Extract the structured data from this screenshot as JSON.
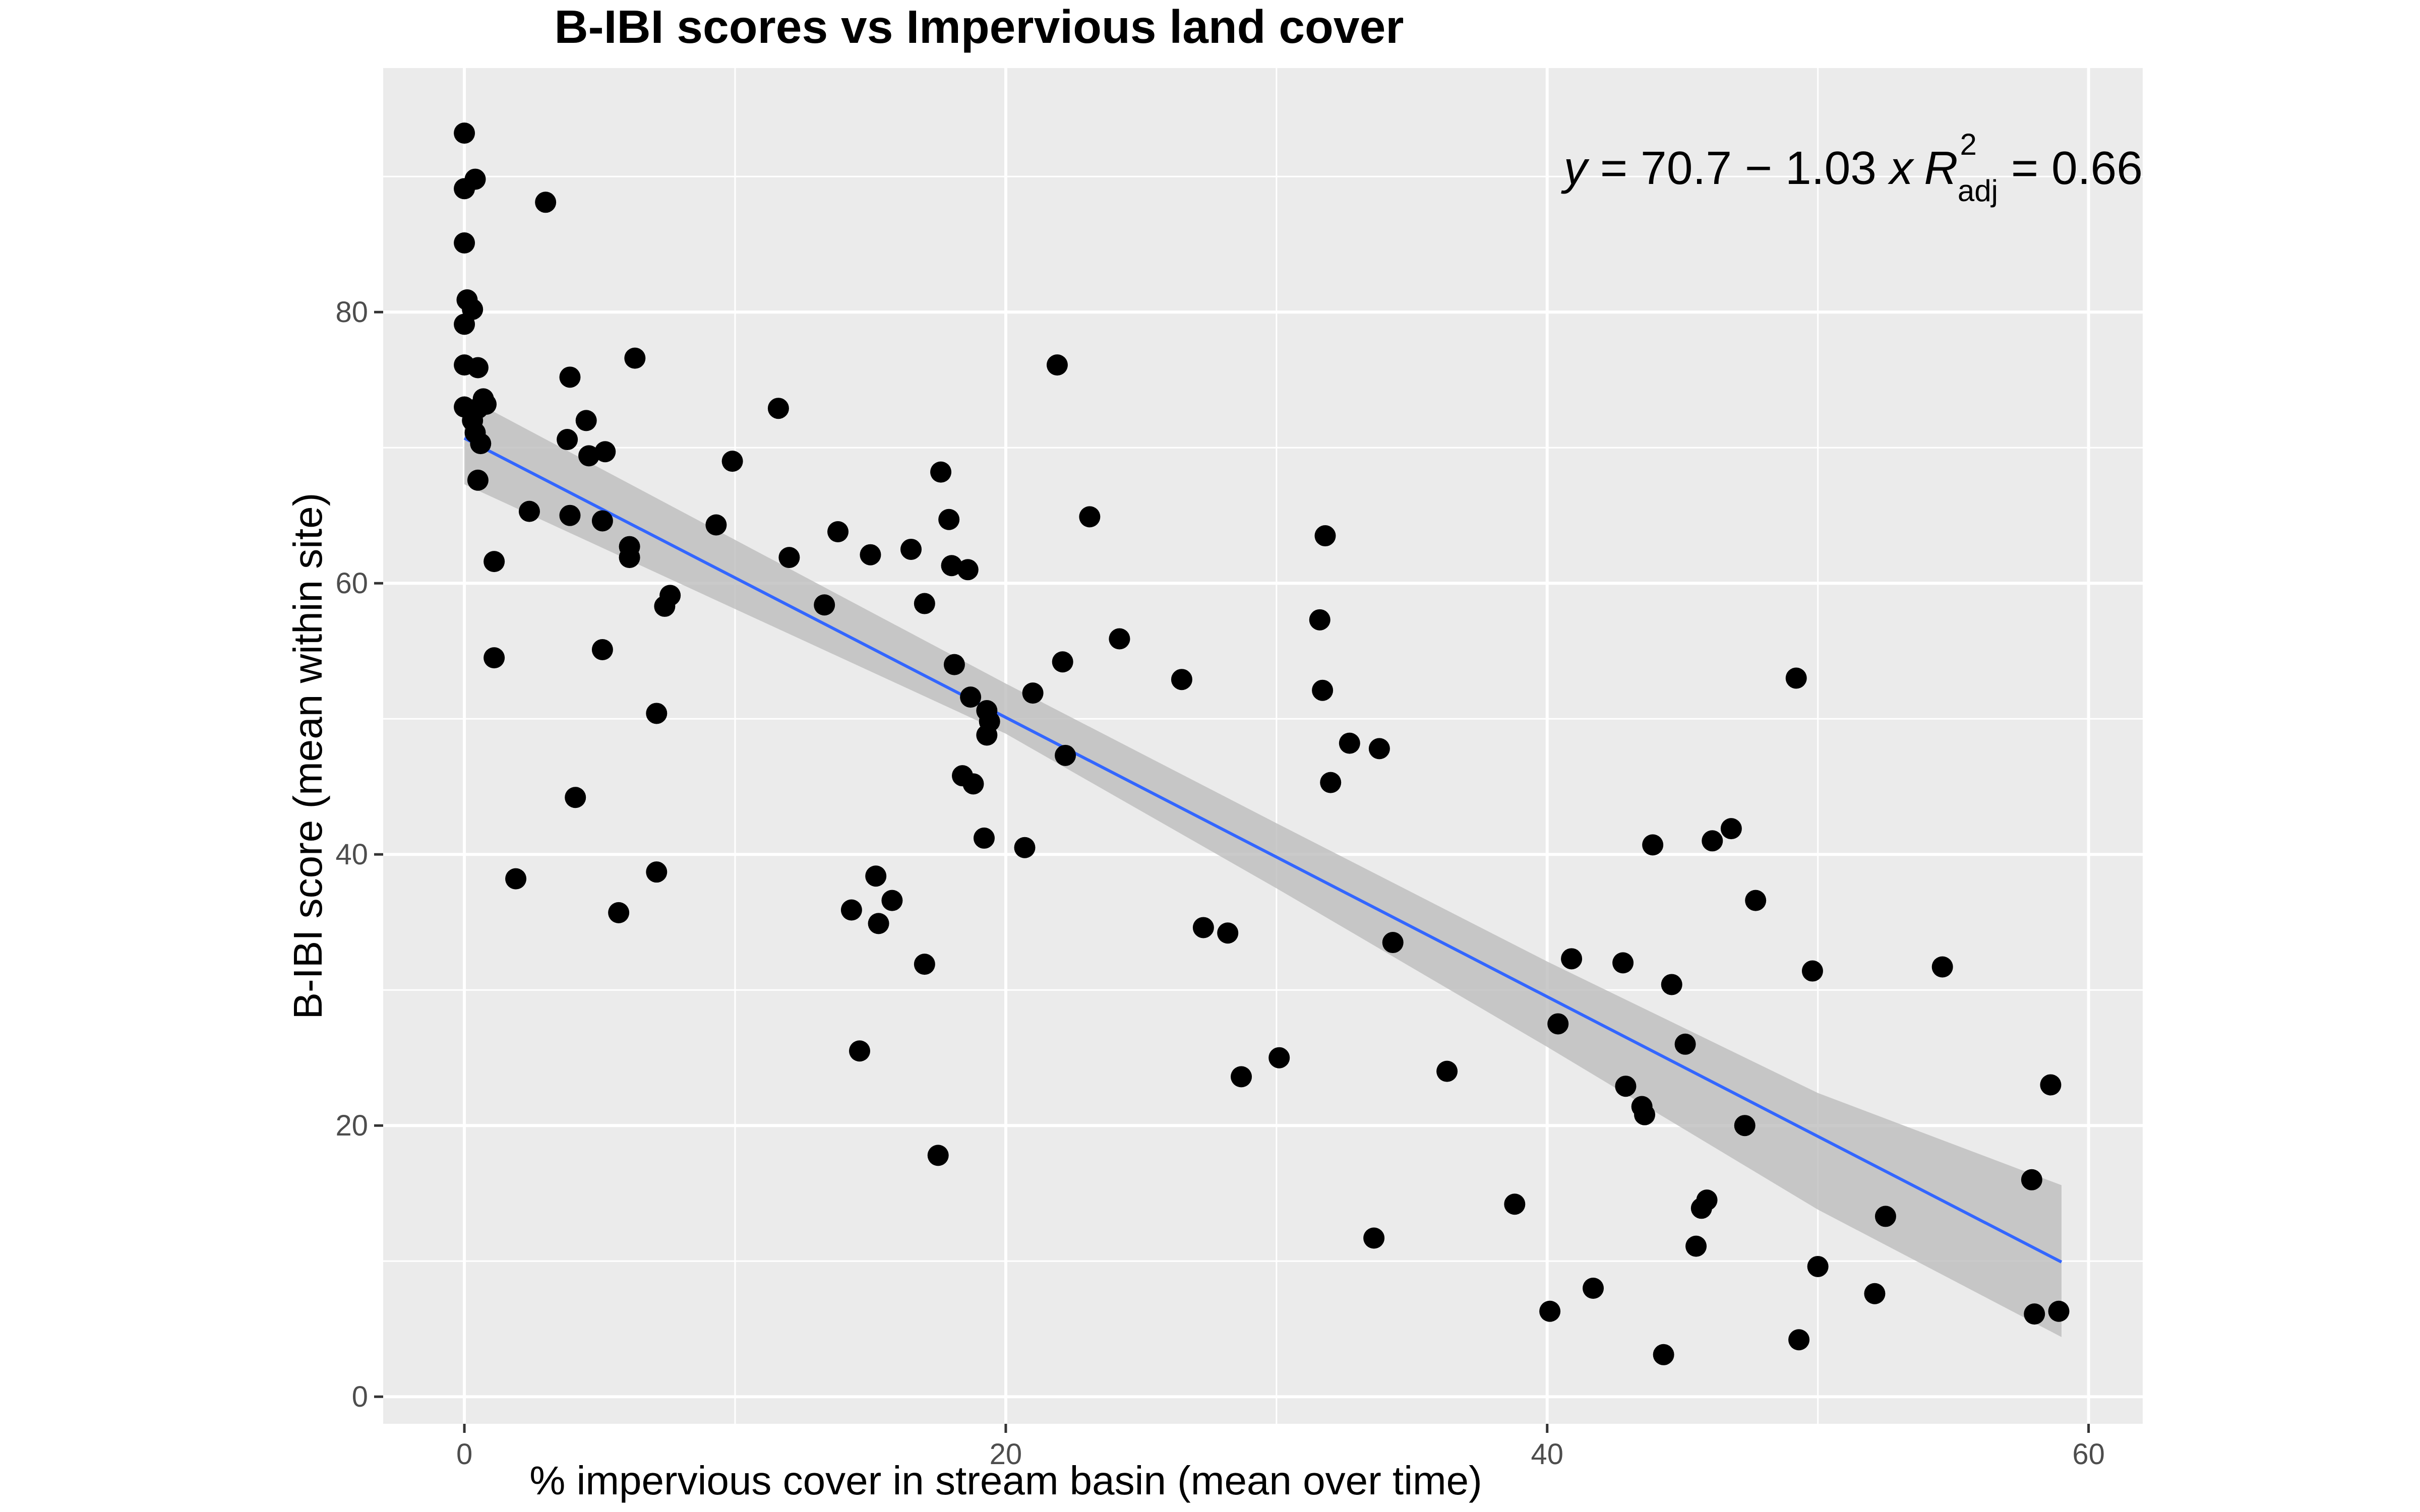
{
  "chart_data": {
    "type": "scatter",
    "title": "B-IBI scores vs Impervious land cover",
    "xlabel": "% impervious cover in stream basin (mean over time)",
    "ylabel": "B-IBI score (mean within site)",
    "xlim": [
      -3,
      62
    ],
    "ylim": [
      -2,
      98
    ],
    "x_ticks": [
      0,
      20,
      40,
      60
    ],
    "y_ticks": [
      0,
      20,
      40,
      60,
      80
    ],
    "grid": true,
    "background": "#ebebeb",
    "point_color": "#000000",
    "fit_line_color": "#3366ff",
    "confidence_band_color": "#bdbdbd",
    "annotation": {
      "y_var": "y",
      "equation": " = 70.7 − 1.03 ",
      "x_var": "x",
      "r_letter": "R",
      "r_sup": "2",
      "r_sub": "adj",
      "r_value": " = 0.66"
    },
    "fit": {
      "intercept": 70.7,
      "slope": -1.03,
      "x_range": [
        0,
        59
      ],
      "ci": [
        {
          "x": 0,
          "lower": 67.3,
          "upper": 73.8
        },
        {
          "x": 20,
          "lower": 48.9,
          "upper": 52.6
        },
        {
          "x": 30,
          "lower": 37.5,
          "upper": 42.3
        },
        {
          "x": 40,
          "lower": 25.8,
          "upper": 32.1
        },
        {
          "x": 50,
          "lower": 13.8,
          "upper": 22.4
        },
        {
          "x": 59,
          "lower": 4.4,
          "upper": 15.6
        }
      ]
    },
    "points": [
      [
        0.0,
        93.2
      ],
      [
        0.0,
        89.1
      ],
      [
        0.0,
        85.1
      ],
      [
        0.1,
        80.9
      ],
      [
        0.0,
        79.1
      ],
      [
        0.4,
        89.8
      ],
      [
        0.3,
        80.2
      ],
      [
        0.0,
        76.1
      ],
      [
        0.0,
        73.0
      ],
      [
        0.5,
        75.9
      ],
      [
        0.5,
        72.9
      ],
      [
        0.7,
        73.6
      ],
      [
        0.8,
        73.2
      ],
      [
        0.3,
        72.0
      ],
      [
        0.4,
        71.1
      ],
      [
        0.6,
        70.3
      ],
      [
        0.5,
        67.6
      ],
      [
        1.1,
        61.6
      ],
      [
        1.1,
        54.5
      ],
      [
        1.9,
        38.2
      ],
      [
        2.4,
        65.3
      ],
      [
        3.0,
        88.1
      ],
      [
        3.8,
        70.6
      ],
      [
        3.9,
        75.2
      ],
      [
        3.9,
        65.0
      ],
      [
        4.1,
        44.2
      ],
      [
        4.5,
        72.0
      ],
      [
        4.6,
        69.4
      ],
      [
        5.1,
        64.6
      ],
      [
        5.2,
        69.7
      ],
      [
        5.1,
        55.1
      ],
      [
        5.7,
        35.7
      ],
      [
        6.1,
        62.7
      ],
      [
        6.1,
        61.9
      ],
      [
        6.3,
        76.6
      ],
      [
        7.1,
        50.4
      ],
      [
        7.1,
        38.7
      ],
      [
        7.4,
        58.3
      ],
      [
        7.6,
        59.1
      ],
      [
        9.3,
        64.3
      ],
      [
        9.9,
        69.0
      ],
      [
        11.6,
        72.9
      ],
      [
        12.0,
        61.9
      ],
      [
        13.3,
        58.4
      ],
      [
        13.8,
        63.8
      ],
      [
        14.3,
        35.9
      ],
      [
        14.6,
        25.5
      ],
      [
        15.0,
        62.1
      ],
      [
        15.2,
        38.4
      ],
      [
        15.3,
        34.9
      ],
      [
        15.8,
        36.6
      ],
      [
        16.5,
        62.5
      ],
      [
        17.0,
        58.5
      ],
      [
        17.0,
        31.9
      ],
      [
        17.5,
        17.8
      ],
      [
        17.6,
        68.2
      ],
      [
        17.9,
        64.7
      ],
      [
        18.0,
        61.3
      ],
      [
        18.1,
        54.0
      ],
      [
        18.4,
        45.8
      ],
      [
        18.6,
        61.0
      ],
      [
        18.7,
        51.6
      ],
      [
        18.8,
        45.2
      ],
      [
        19.2,
        41.2
      ],
      [
        19.3,
        50.6
      ],
      [
        19.3,
        48.8
      ],
      [
        19.4,
        49.8
      ],
      [
        20.7,
        40.5
      ],
      [
        21.0,
        51.9
      ],
      [
        21.9,
        76.1
      ],
      [
        22.1,
        54.2
      ],
      [
        22.2,
        47.3
      ],
      [
        23.1,
        64.9
      ],
      [
        24.2,
        55.9
      ],
      [
        26.5,
        52.9
      ],
      [
        27.3,
        34.6
      ],
      [
        28.2,
        34.2
      ],
      [
        28.7,
        23.6
      ],
      [
        30.1,
        25.0
      ],
      [
        31.6,
        57.3
      ],
      [
        31.7,
        52.1
      ],
      [
        31.8,
        63.5
      ],
      [
        32.0,
        45.3
      ],
      [
        32.7,
        48.2
      ],
      [
        33.6,
        11.7
      ],
      [
        33.8,
        47.8
      ],
      [
        34.3,
        33.5
      ],
      [
        36.3,
        24.0
      ],
      [
        38.8,
        14.2
      ],
      [
        40.1,
        6.3
      ],
      [
        40.4,
        27.5
      ],
      [
        40.9,
        32.3
      ],
      [
        41.7,
        8.0
      ],
      [
        42.8,
        32.0
      ],
      [
        42.9,
        22.9
      ],
      [
        43.5,
        21.4
      ],
      [
        43.6,
        20.8
      ],
      [
        43.9,
        40.7
      ],
      [
        44.3,
        3.1
      ],
      [
        44.6,
        30.4
      ],
      [
        45.1,
        26.0
      ],
      [
        45.5,
        11.1
      ],
      [
        45.7,
        13.9
      ],
      [
        45.9,
        14.5
      ],
      [
        46.1,
        41.0
      ],
      [
        46.8,
        41.9
      ],
      [
        47.3,
        20.0
      ],
      [
        47.7,
        36.6
      ],
      [
        49.2,
        53.0
      ],
      [
        49.3,
        4.2
      ],
      [
        49.8,
        31.4
      ],
      [
        50.0,
        9.6
      ],
      [
        52.1,
        7.6
      ],
      [
        52.5,
        13.3
      ],
      [
        54.6,
        31.7
      ],
      [
        57.9,
        16.0
      ],
      [
        58.0,
        6.1
      ],
      [
        58.6,
        23.0
      ],
      [
        58.9,
        6.3
      ]
    ]
  }
}
